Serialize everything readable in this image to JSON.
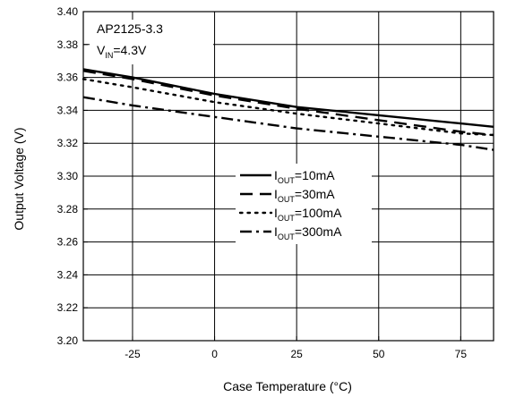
{
  "chart_data": {
    "type": "line",
    "title": "",
    "xlabel": "Case Temperature (°C)",
    "ylabel": "Output Voltage (V)",
    "xlim": [
      -40,
      85
    ],
    "ylim": [
      3.2,
      3.4
    ],
    "x_ticks": [
      -25,
      0,
      25,
      50,
      75
    ],
    "y_ticks": [
      3.2,
      3.22,
      3.24,
      3.26,
      3.28,
      3.3,
      3.32,
      3.34,
      3.36,
      3.38,
      3.4
    ],
    "grid": true,
    "legend_position": "center-right",
    "annotation": {
      "line1": "AP2125-3.3",
      "line2_main": "V",
      "line2_sub": "IN",
      "line2_rest": "=4.3V"
    },
    "series": [
      {
        "name": "I_OUT=10mA",
        "label_main": "I",
        "label_sub": "OUT",
        "label_rest": "=10mA",
        "style": "solid",
        "x": [
          -40,
          -25,
          0,
          25,
          50,
          75,
          85
        ],
        "y": [
          3.365,
          3.36,
          3.35,
          3.342,
          3.337,
          3.332,
          3.33
        ]
      },
      {
        "name": "I_OUT=30mA",
        "label_main": "I",
        "label_sub": "OUT",
        "label_rest": "=30mA",
        "style": "dash",
        "x": [
          -40,
          -25,
          0,
          25,
          50,
          75,
          85
        ],
        "y": [
          3.364,
          3.359,
          3.349,
          3.341,
          3.334,
          3.327,
          3.325
        ]
      },
      {
        "name": "I_OUT=100mA",
        "label_main": "I",
        "label_sub": "OUT",
        "label_rest": "=100mA",
        "style": "dot",
        "x": [
          -40,
          -25,
          0,
          25,
          50,
          75,
          85
        ],
        "y": [
          3.359,
          3.354,
          3.345,
          3.338,
          3.332,
          3.326,
          3.325
        ]
      },
      {
        "name": "I_OUT=300mA",
        "label_main": "I",
        "label_sub": "OUT",
        "label_rest": "=300mA",
        "style": "dashdot",
        "x": [
          -40,
          -25,
          0,
          25,
          50,
          75,
          85
        ],
        "y": [
          3.348,
          3.343,
          3.336,
          3.329,
          3.324,
          3.319,
          3.316
        ]
      }
    ]
  }
}
